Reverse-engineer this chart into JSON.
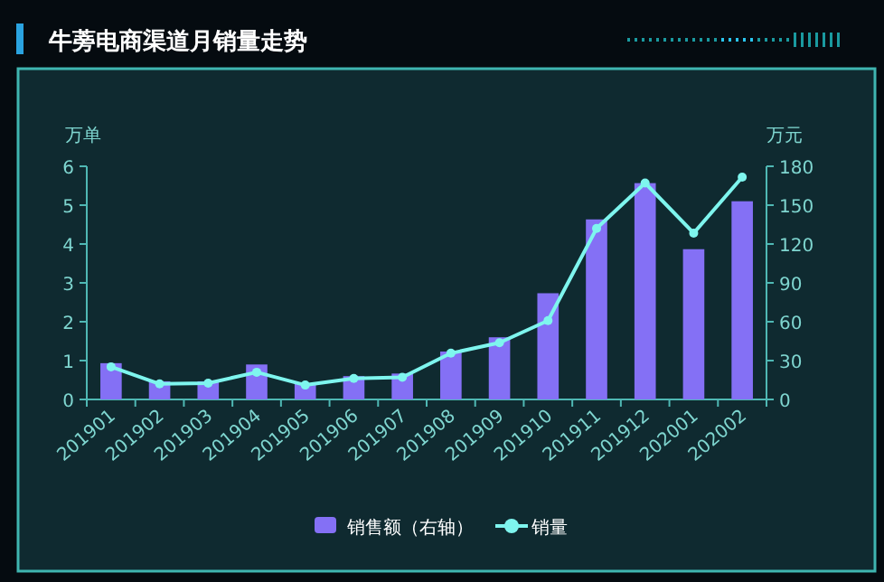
{
  "chart_data": {
    "type": "bar",
    "title": "牛蒡电商渠道月销量走势",
    "ylabel": "万单",
    "y2label": "万元",
    "categories": [
      "201901",
      "201902",
      "201903",
      "201904",
      "201905",
      "201906",
      "201907",
      "201908",
      "201909",
      "201910",
      "201911",
      "201912",
      "202001",
      "202002"
    ],
    "series": [
      {
        "name": "销售额（右轴）",
        "axis": "y2",
        "color": "#8470f5",
        "values": [
          28,
          14,
          14,
          27,
          12,
          18,
          20,
          37,
          48,
          82,
          139,
          167,
          116,
          153
        ]
      },
      {
        "name": "销量",
        "type": "line",
        "color": "#7ef5ee",
        "marker": "circle",
        "values": [
          0.84,
          0.4,
          0.42,
          0.7,
          0.37,
          0.54,
          0.57,
          1.19,
          1.46,
          2.03,
          4.4,
          5.57,
          4.28,
          5.72
        ]
      }
    ],
    "ylim": [
      0,
      6
    ],
    "yticks": [
      0,
      1,
      2,
      3,
      4,
      5,
      6
    ],
    "y2lim": [
      0,
      180
    ],
    "y2ticks": [
      0,
      30,
      60,
      90,
      120,
      150,
      180
    ],
    "grid": false,
    "legend": "bottom"
  }
}
